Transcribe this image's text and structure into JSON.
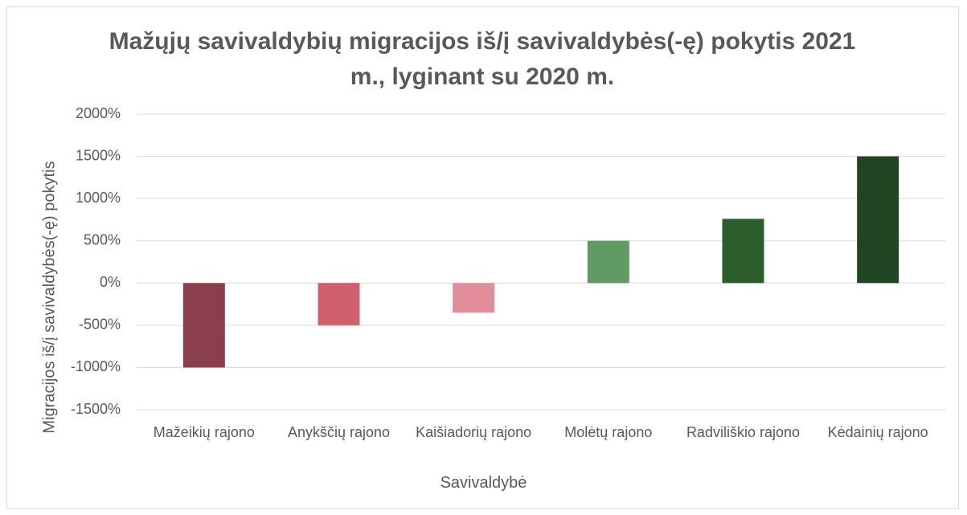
{
  "chart_data": {
    "type": "bar",
    "title": "Mažųjų savivaldybių migracijos iš/į savivaldybės(-ę) pokytis 2021 m., lyginant su 2020 m.",
    "xlabel": "Savivaldybė",
    "ylabel": "Migracijos iš/į savivaldybės(-ę) pokytis",
    "categories": [
      "Mažeikių rajono",
      "Anykščių rajono",
      "Kaišiadorių rajono",
      "Molėtų rajono",
      "Radviliškio rajono",
      "Kėdainių rajono"
    ],
    "values": [
      -1000,
      -500,
      -350,
      500,
      760,
      1500
    ],
    "colors": [
      "#8b3f4c",
      "#d1606f",
      "#e08e9a",
      "#629a63",
      "#2b5e2b",
      "#1f4523"
    ],
    "ylim": [
      -1500,
      2000
    ],
    "yticks": [
      {
        "value": -1500,
        "label": "-1500%"
      },
      {
        "value": -1000,
        "label": "-1000%"
      },
      {
        "value": -500,
        "label": "-500%"
      },
      {
        "value": 0,
        "label": "0%"
      },
      {
        "value": 500,
        "label": "500%"
      },
      {
        "value": 1000,
        "label": "1000%"
      },
      {
        "value": 1500,
        "label": "1500%"
      },
      {
        "value": 2000,
        "label": "2000%"
      }
    ],
    "grid": true
  }
}
